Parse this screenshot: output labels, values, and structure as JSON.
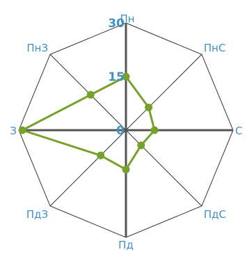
{
  "chart_data": {
    "type": "radar",
    "directions": [
      "Пн",
      "ПнС",
      "С",
      "ПдС",
      "Пд",
      "ПдЗ",
      "З",
      "ПнЗ"
    ],
    "scale_labels": [
      "0",
      "15",
      "30"
    ],
    "rmax": 30,
    "series": [
      {
        "values": [
          15,
          9,
          8,
          6,
          11,
          10,
          29,
          14
        ]
      }
    ],
    "colors": {
      "series": "#76a12a",
      "axis": "#555555",
      "grid": "#333333",
      "label": "#3f8fc4"
    }
  }
}
